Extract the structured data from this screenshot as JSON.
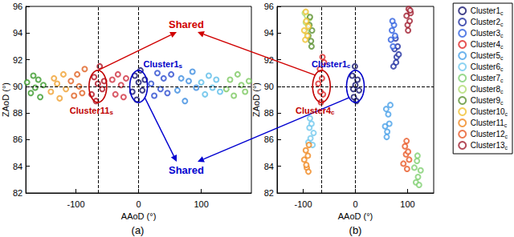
{
  "chart_data": [
    {
      "type": "scatter",
      "title": "(a)",
      "x_label": "AAoD (°)",
      "y_label": "ZAoD (°)",
      "xlim": [
        -180,
        180
      ],
      "xticks": [
        -100,
        0,
        100
      ],
      "ylim": [
        82,
        96
      ],
      "yticks": [
        82,
        84,
        86,
        88,
        90,
        92,
        94,
        96
      ],
      "grid": false,
      "marker": "open_circle",
      "series": [
        {
          "color": "#3a9a2a",
          "x": [
            -178,
            -172,
            -168,
            -165,
            -160,
            -157,
            -152
          ],
          "y": [
            90.3,
            89.5,
            90.8,
            89.9,
            90.5,
            89.2,
            90.1
          ]
        },
        {
          "color": "#f0a030",
          "x": [
            -140,
            -135,
            -130,
            -126,
            -120,
            -116
          ],
          "y": [
            89.6,
            90.6,
            90.2,
            89.1,
            90.9,
            89.8
          ]
        },
        {
          "color": "#e06020",
          "x": [
            -108,
            -103,
            -98,
            -95,
            -90,
            -86
          ],
          "y": [
            90.4,
            89.3,
            90.9,
            90.0,
            89.5,
            91.3
          ]
        },
        {
          "color": "#b01020",
          "x": [
            -75,
            -71,
            -68,
            -65,
            -62,
            -58,
            -55
          ],
          "y": [
            89.4,
            90.7,
            88.9,
            90.2,
            91.5,
            89.8,
            90.4
          ]
        },
        {
          "color": "#d03040",
          "x": [
            -42,
            -37,
            -33,
            -28,
            -24,
            -20
          ],
          "y": [
            90.5,
            89.4,
            90.9,
            90.1,
            89.2,
            90.6
          ]
        },
        {
          "color": "#14146e",
          "x": [
            -10,
            -6,
            -3,
            0,
            3,
            6,
            10
          ],
          "y": [
            89.6,
            90.8,
            89.0,
            90.3,
            91.2,
            89.7,
            90.5
          ]
        },
        {
          "color": "#2a4bd0",
          "x": [
            20,
            25,
            30,
            35,
            40,
            46,
            52
          ],
          "y": [
            90.2,
            89.3,
            91.0,
            89.8,
            90.6,
            89.5,
            90.9
          ]
        },
        {
          "color": "#3c8ce0",
          "x": [
            62,
            68,
            74,
            80,
            86,
            92
          ],
          "y": [
            89.7,
            90.6,
            88.9,
            90.4,
            91.1,
            89.9
          ]
        },
        {
          "color": "#5cbde8",
          "x": [
            100,
            106,
            112,
            118,
            124,
            130
          ],
          "y": [
            90.3,
            89.4,
            90.8,
            89.9,
            90.5,
            89.6
          ]
        },
        {
          "color": "#7cc860",
          "x": [
            140,
            146,
            152,
            158,
            164,
            170,
            176
          ],
          "y": [
            89.8,
            90.5,
            89.3,
            90.9,
            90.1,
            89.6,
            90.4
          ]
        }
      ],
      "highlights": [
        {
          "text": "Cluster11s",
          "x": -65,
          "y": 90,
          "color": "#c00000"
        },
        {
          "text": "Cluster1s",
          "x": 0,
          "y": 90,
          "color": "#0000c8"
        }
      ]
    },
    {
      "type": "scatter",
      "title": "(b)",
      "x_label": "AAoD (°)",
      "y_label": "ZAoD (°)",
      "xlim": [
        -150,
        150
      ],
      "xticks": [
        -100,
        0,
        100
      ],
      "ylim": [
        82,
        96
      ],
      "yticks": [
        82,
        84,
        86,
        88,
        90,
        92,
        94,
        96
      ],
      "grid": false,
      "marker": "open_circle",
      "legend": "right",
      "series": [
        {
          "name": "Cluster1c",
          "color": "#14146e",
          "x": [
            -6,
            -3,
            -1,
            0,
            2,
            4,
            7,
            -4
          ],
          "y": [
            90.8,
            89.2,
            91.5,
            90.1,
            88.9,
            90.5,
            89.7,
            89.8
          ]
        },
        {
          "name": "Cluster2c",
          "color": "#2030a0",
          "x": [
            73,
            75,
            77,
            79,
            81,
            83,
            78
          ],
          "y": [
            91.5,
            92.8,
            93.6,
            92.2,
            93.0,
            92.4,
            91.8
          ]
        },
        {
          "name": "Cluster3c",
          "color": "#3060e0",
          "x": [
            68,
            70,
            72,
            74,
            76,
            71
          ],
          "y": [
            93.5,
            94.2,
            93.0,
            94.6,
            93.8,
            94.9
          ]
        },
        {
          "name": "Cluster4c",
          "color": "#e02828",
          "x": [
            -71,
            -68,
            -66,
            -64,
            -62,
            -60,
            -67,
            -63
          ],
          "y": [
            90.2,
            91.3,
            88.8,
            90.6,
            89.4,
            91.8,
            89.6,
            92.2
          ]
        },
        {
          "name": "Cluster5c",
          "color": "#48a0e8",
          "x": [
            57,
            59,
            61,
            63,
            65,
            67,
            60
          ],
          "y": [
            87.0,
            88.3,
            86.6,
            87.9,
            87.2,
            88.6,
            86.2
          ]
        },
        {
          "name": "Cluster6c",
          "color": "#72c8ee",
          "x": [
            -90,
            -88,
            -86,
            -84,
            -82,
            -80,
            -87
          ],
          "y": [
            85.8,
            86.9,
            86.1,
            87.2,
            85.6,
            86.5,
            87.6
          ]
        },
        {
          "name": "Cluster7c",
          "color": "#80d070",
          "x": [
            113,
            116,
            118,
            120,
            122,
            125,
            119
          ],
          "y": [
            83.9,
            82.8,
            84.4,
            83.2,
            82.6,
            83.7,
            84.8
          ]
        },
        {
          "name": "Cluster8c",
          "color": "#b0dc70",
          "x": [
            -97,
            -95,
            -93,
            -90,
            -88,
            -94
          ],
          "y": [
            95.5,
            94.8,
            95.3,
            94.6,
            95.1,
            94.1
          ]
        },
        {
          "name": "Cluster9c",
          "color": "#5a9030",
          "x": [
            -90,
            -88,
            -85,
            -83,
            -87,
            -84
          ],
          "y": [
            93.8,
            94.6,
            93.4,
            94.2,
            95.2,
            93.0
          ]
        },
        {
          "name": "Cluster10c",
          "color": "#f0c030",
          "x": [
            -98,
            -96,
            -94,
            -92,
            -90,
            -95
          ],
          "y": [
            94.2,
            93.5,
            94.9,
            93.8,
            94.5,
            95.6
          ]
        },
        {
          "name": "Cluster11c",
          "color": "#f08820",
          "x": [
            -98,
            -95,
            -93,
            -91,
            -89,
            -94,
            -90
          ],
          "y": [
            84.5,
            85.2,
            83.9,
            84.8,
            85.6,
            84.1,
            83.6
          ]
        },
        {
          "name": "Cluster12c",
          "color": "#e85a28",
          "x": [
            92,
            95,
            97,
            99,
            101,
            103,
            98
          ],
          "y": [
            84.2,
            85.5,
            84.9,
            83.8,
            85.1,
            84.5,
            85.9
          ]
        },
        {
          "name": "Cluster13c",
          "color": "#a01e30",
          "x": [
            98,
            100,
            102,
            104,
            106,
            101,
            105
          ],
          "y": [
            95.3,
            94.6,
            95.8,
            94.9,
            95.5,
            94.2,
            95.7
          ]
        }
      ],
      "highlights": [
        {
          "text": "Cluster4c",
          "x": -65,
          "y": 90,
          "color": "#c00000"
        },
        {
          "text": "Cluster1c",
          "x": 0,
          "y": 90,
          "color": "#0000c8"
        }
      ]
    }
  ],
  "annotations": [
    {
      "text": "Shared",
      "color": "#d00000"
    },
    {
      "text": "Shared",
      "color": "#0000d0"
    }
  ]
}
